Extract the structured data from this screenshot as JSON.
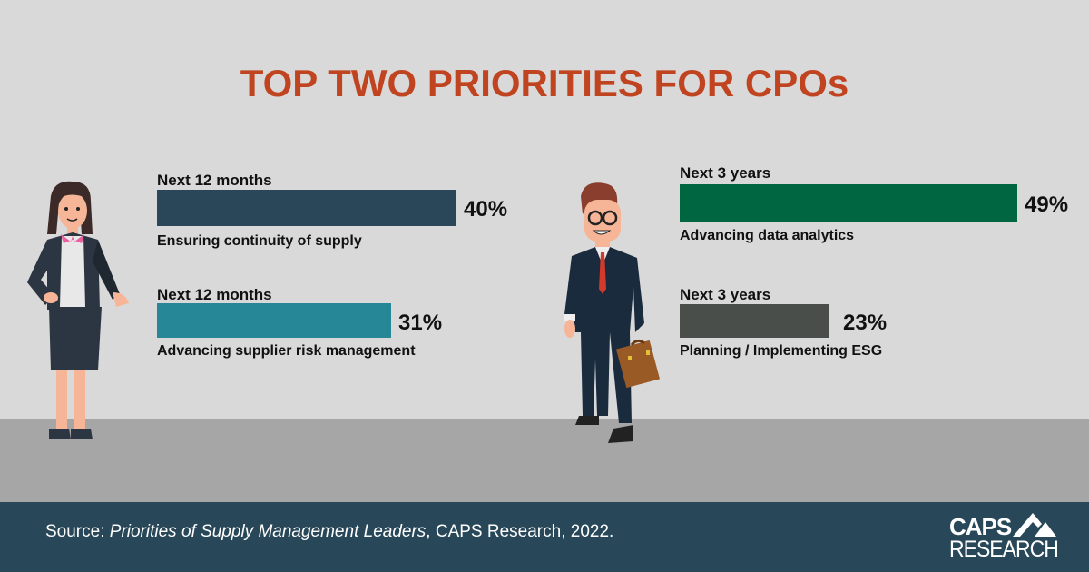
{
  "title": "TOP TWO PRIORITIES FOR CPOs",
  "chart_data": {
    "type": "bar",
    "orientation": "horizontal",
    "title": "TOP TWO PRIORITIES FOR CPOs",
    "xlim": [
      0,
      49
    ],
    "unit": "%",
    "groups": [
      {
        "name": "Next 12 months",
        "bars": [
          {
            "period": "Next 12 months",
            "category": "Ensuring continuity of supply",
            "value": 40,
            "value_label": "40%",
            "color": "#294759"
          },
          {
            "period": "Next 12 months",
            "category": "Advancing supplier risk management",
            "value": 31,
            "value_label": "31%",
            "color": "#268897"
          }
        ]
      },
      {
        "name": "Next 3 years",
        "bars": [
          {
            "period": "Next 3 years",
            "category": "Advancing data analytics",
            "value": 49,
            "value_label": "49%",
            "color": "#006541"
          },
          {
            "period": "Next 3 years",
            "category": "Planning / Implementing ESG",
            "value": 23,
            "value_label": "23%",
            "color": "#4a4e4a"
          }
        ]
      }
    ]
  },
  "footer": {
    "source_prefix": "Source: ",
    "source_title": "Priorities of Supply Management Leaders",
    "source_suffix": ", CAPS Research, 2022.",
    "logo_line1": "CAPS",
    "logo_line2": "RESEARCH"
  },
  "colors": {
    "title": "#c0441f",
    "background": "#d9d9d9",
    "floor": "#a6a6a6",
    "footer": "#284758"
  },
  "illustrations": [
    "businesswoman-figure",
    "businessman-with-briefcase-figure"
  ]
}
